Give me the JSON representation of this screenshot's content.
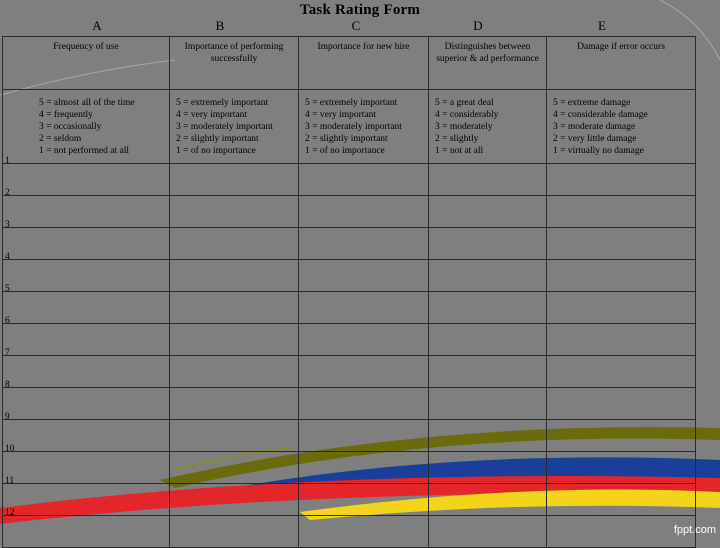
{
  "title": "Task Rating Form",
  "columns": [
    {
      "letter": "A",
      "header": "Frequency of use",
      "scale": [
        "5 = almost all of the time",
        "4 = frequently",
        "3 = occasionally",
        "2 = seldom",
        "1 = not performed at all"
      ]
    },
    {
      "letter": "B",
      "header": "Importance of performing successfully",
      "scale": [
        "5 = extremely important",
        "4 = very important",
        "3 = moderately important",
        "2 = slightly important",
        "1 = of no importance"
      ]
    },
    {
      "letter": "C",
      "header": "Importance for new hire",
      "scale": [
        "5 = extremely important",
        "4 = very important",
        "3 = moderately important",
        "2 = slightly important",
        "1 = of no importance"
      ]
    },
    {
      "letter": "D",
      "header": "Distinguishes between superior & ad performance",
      "scale": [
        "5 = a great deal",
        "4 = considerably",
        "3 = moderately",
        "2 = slightly",
        "1 = not at all"
      ]
    },
    {
      "letter": "E",
      "header": "Damage if error occurs",
      "scale": [
        "5 = extreme damage",
        "4 = considerable damage",
        "3 = moderate damage",
        "2 = very little damage",
        "1 = virtually no damage"
      ]
    }
  ],
  "rows": [
    "1",
    "2",
    "3",
    "4",
    "5",
    "6",
    "7",
    "8",
    "9",
    "10",
    "11",
    "12"
  ],
  "watermark": "fppt.com",
  "colors": {
    "background": "#7f7f7f",
    "olive": "#6b6b0e",
    "blue": "#1a3f9a",
    "red": "#e3262a",
    "yellow": "#f2d51b"
  }
}
